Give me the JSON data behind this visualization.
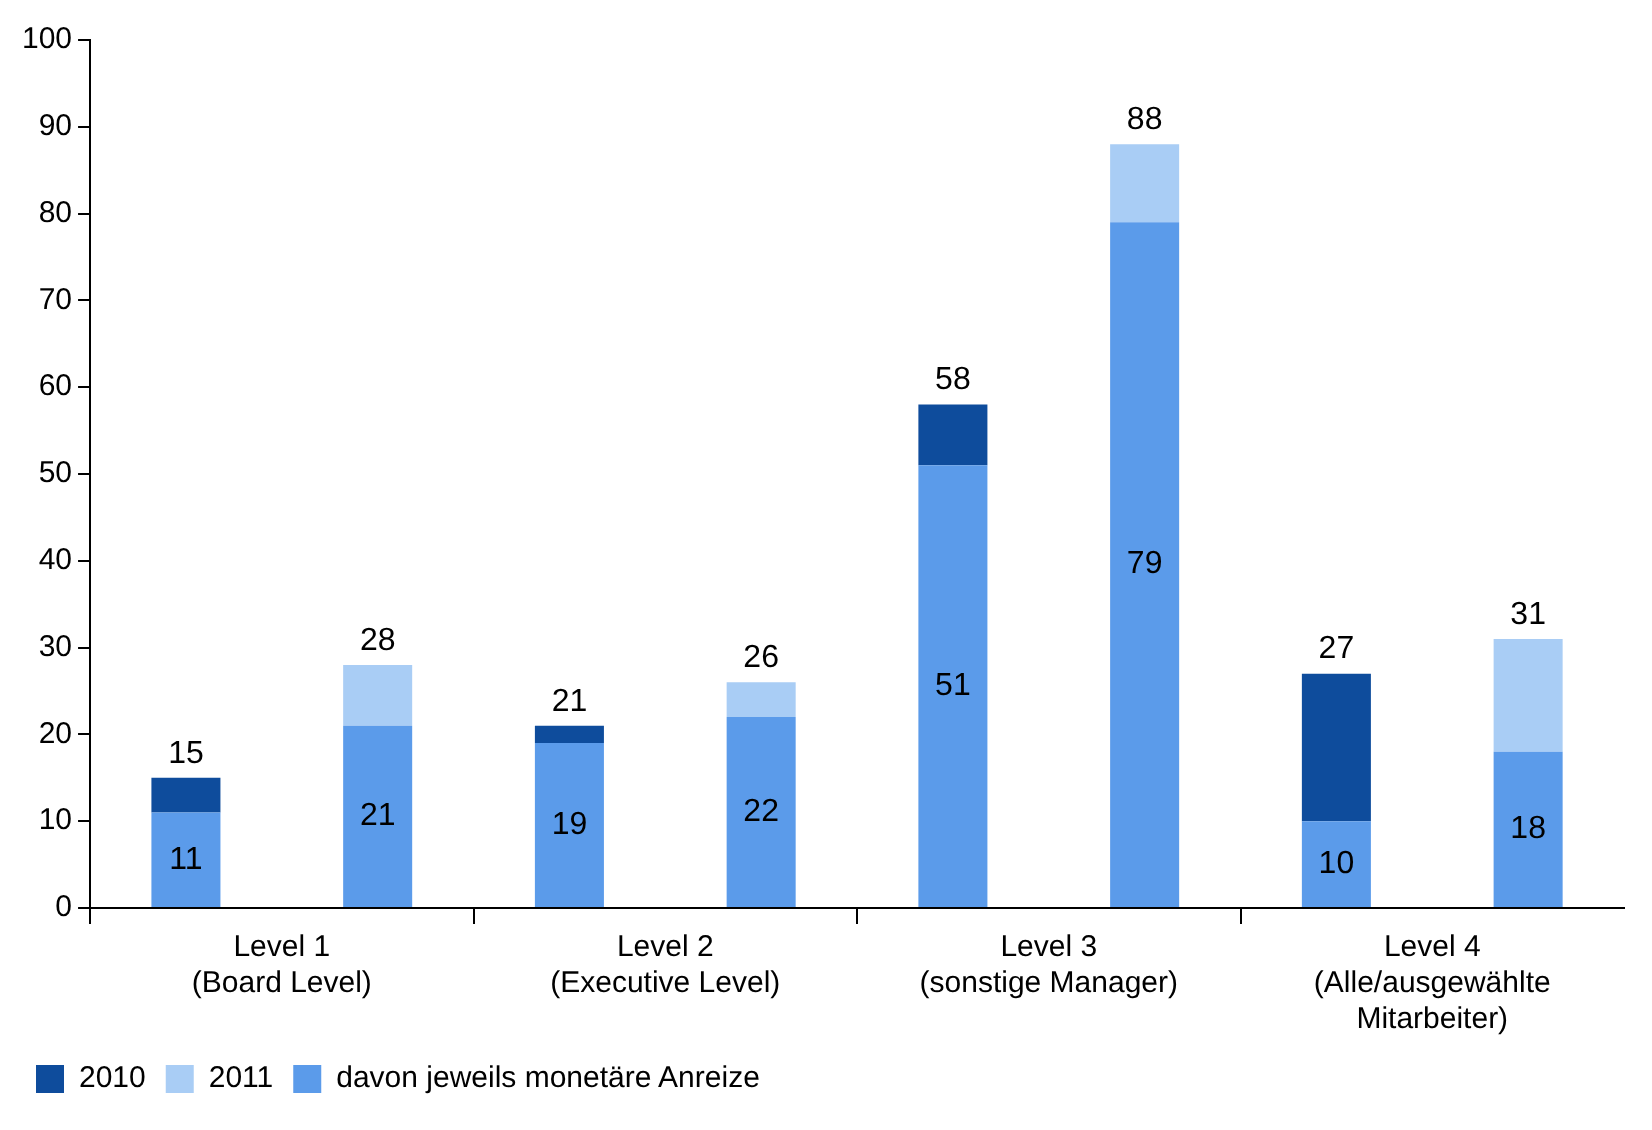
{
  "chart_data": {
    "type": "bar",
    "stacked": true,
    "categories": [
      "Level 1\n(Board Level)",
      null,
      "Level 2\n(Executive Level)",
      null,
      "Level 3\n(sonstige Manager)",
      null,
      "Level 4\n(Alle/ausgewählte\nMitarbeiter)",
      null
    ],
    "series": [
      {
        "name": "davon jeweils monetäre Anreize",
        "color": "#5b9bea",
        "values": [
          11,
          21,
          19,
          22,
          51,
          79,
          10,
          18
        ],
        "value_labels": [
          "11",
          "21",
          "19",
          "22",
          "51",
          "79",
          "10",
          "18"
        ]
      },
      {
        "name": "2010",
        "color": "#0e4c9c",
        "values": [
          4,
          null,
          2,
          null,
          7,
          null,
          17,
          null
        ]
      },
      {
        "name": "2011",
        "color": "#a9cdf5",
        "values": [
          null,
          7,
          null,
          4,
          null,
          9,
          null,
          13
        ]
      }
    ],
    "totals": [
      "15",
      "28",
      "21",
      "26",
      "58",
      "88",
      "27",
      "31"
    ],
    "ylim": [
      0,
      100
    ],
    "yticks": [
      0,
      10,
      20,
      30,
      40,
      50,
      60,
      70,
      80,
      90,
      100
    ],
    "legend": "bottom left"
  }
}
